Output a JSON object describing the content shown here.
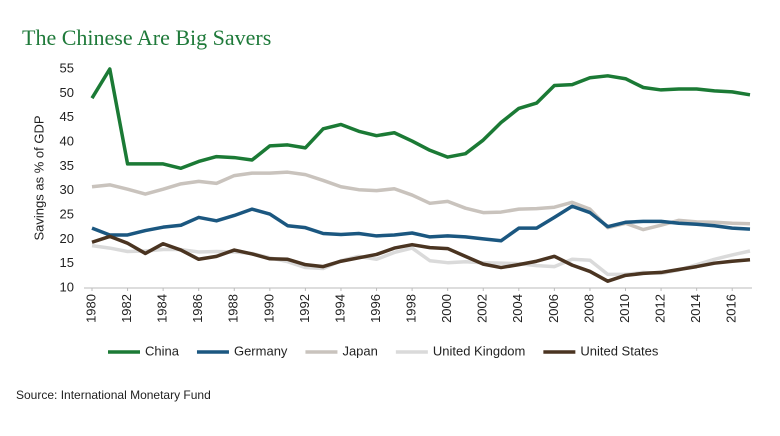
{
  "chart_data": {
    "type": "line",
    "title": "The Chinese Are Big Savers",
    "y_label": "Savings as % of GDP",
    "source": "Source: International Monetary Fund",
    "x": [
      1980,
      1981,
      1982,
      1983,
      1984,
      1985,
      1986,
      1987,
      1988,
      1989,
      1990,
      1991,
      1992,
      1993,
      1994,
      1995,
      1996,
      1997,
      1998,
      1999,
      2000,
      2001,
      2002,
      2003,
      2004,
      2005,
      2006,
      2007,
      2008,
      2009,
      2010,
      2011,
      2012,
      2013,
      2014,
      2015,
      2016,
      2017
    ],
    "xlim": [
      1980,
      2017
    ],
    "xticks": [
      1980,
      1982,
      1984,
      1986,
      1988,
      1990,
      1992,
      1994,
      1996,
      1998,
      2000,
      2002,
      2004,
      2006,
      2008,
      2010,
      2012,
      2014,
      2016
    ],
    "ylim": [
      10,
      55
    ],
    "yticks": [
      10,
      15,
      20,
      25,
      30,
      35,
      40,
      45,
      50,
      55
    ],
    "grid": false,
    "legend": "bottom",
    "series": [
      {
        "name": "China",
        "color": "#1b7a35",
        "values": [
          49,
          55,
          35.5,
          35.5,
          35.5,
          34.6,
          36,
          37,
          36.8,
          36.3,
          39.2,
          39.4,
          38.8,
          42.7,
          43.6,
          42.2,
          41.3,
          41.9,
          40.2,
          38.3,
          36.9,
          37.6,
          40.4,
          44,
          46.9,
          48,
          51.6,
          51.8,
          53.2,
          53.6,
          53,
          51.2,
          50.7,
          50.9,
          50.9,
          50.5,
          50.3,
          49.7
        ]
      },
      {
        "name": "Germany",
        "color": "#1b5780",
        "values": [
          22.3,
          20.9,
          20.9,
          21.8,
          22.5,
          22.9,
          24.5,
          23.8,
          24.9,
          26.2,
          25.2,
          22.8,
          22.4,
          21.2,
          21,
          21.2,
          20.7,
          20.9,
          21.3,
          20.5,
          20.7,
          20.5,
          20.1,
          19.7,
          22.3,
          22.3,
          24.5,
          26.8,
          25.5,
          22.6,
          23.5,
          23.7,
          23.7,
          23.3,
          23.1,
          22.8,
          22.3,
          22.1
        ]
      },
      {
        "name": "Japan",
        "color": "#c9c3bd",
        "values": [
          30.8,
          31.2,
          30.3,
          29.3,
          30.3,
          31.4,
          31.9,
          31.5,
          33.1,
          33.6,
          33.6,
          33.8,
          33.3,
          32.1,
          30.8,
          30.2,
          30,
          30.4,
          29.1,
          27.4,
          27.8,
          26.4,
          25.5,
          25.6,
          26.2,
          26.3,
          26.6,
          27.6,
          26.2,
          22.4,
          23.3,
          22,
          22.9,
          23.9,
          23.6,
          23.5,
          23.3,
          23.2
        ]
      },
      {
        "name": "United Kingdom",
        "color": "#dadada",
        "values": [
          18.7,
          18.2,
          17.5,
          17.6,
          17.9,
          17.9,
          17.4,
          17.5,
          17.4,
          17.1,
          16.2,
          15.4,
          14.2,
          14,
          15.6,
          16.5,
          15.9,
          17.3,
          18.2,
          15.6,
          15.2,
          15.4,
          15.2,
          15.1,
          15,
          14.6,
          14.4,
          15.9,
          15.7,
          12.8,
          12.8,
          13.2,
          13,
          13.7,
          14.8,
          15.9,
          16.8,
          17.6
        ]
      },
      {
        "name": "United States",
        "color": "#4a3421",
        "values": [
          19.4,
          20.6,
          19.2,
          17.1,
          19.1,
          17.8,
          15.9,
          16.5,
          17.8,
          17,
          16,
          15.9,
          14.8,
          14.4,
          15.5,
          16.2,
          16.9,
          18.2,
          18.9,
          18.3,
          18.1,
          16.5,
          14.9,
          14.2,
          14.8,
          15.5,
          16.5,
          14.7,
          13.4,
          11.4,
          12.6,
          13,
          13.2,
          13.8,
          14.4,
          15.1,
          15.5,
          15.8
        ]
      }
    ]
  }
}
